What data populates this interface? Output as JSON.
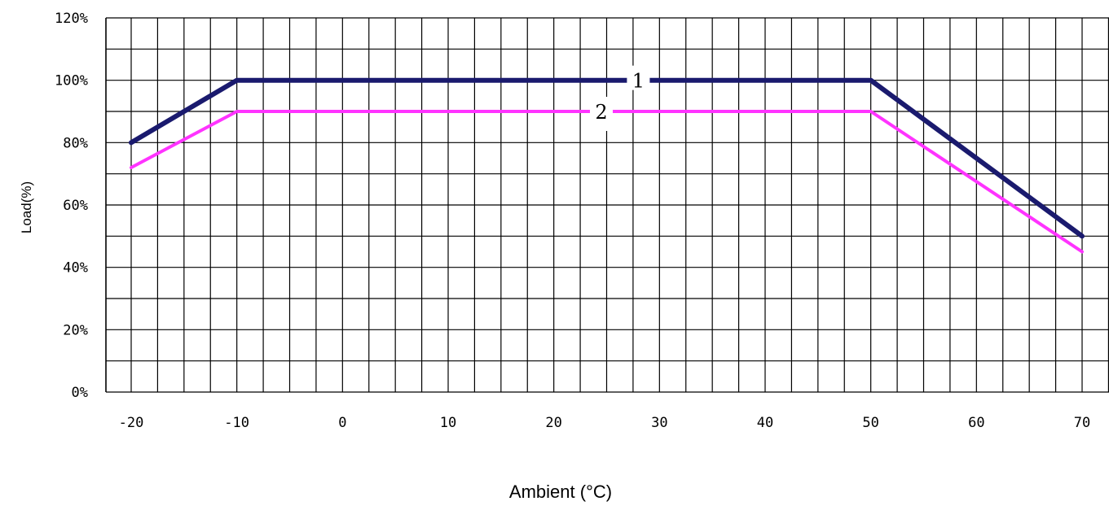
{
  "chart_data": {
    "type": "line",
    "xlabel": "Ambient (°C)",
    "ylabel": "Load(%)",
    "xlim": [
      -20,
      70
    ],
    "ylim": [
      0,
      120
    ],
    "grid": true,
    "x_ticks": [
      "-20",
      "-10",
      "0",
      "10",
      "20",
      "30",
      "40",
      "50",
      "60",
      "70"
    ],
    "y_ticks": [
      "0%",
      "20%",
      "40%",
      "60%",
      "80%",
      "100%",
      "120%"
    ],
    "series": [
      {
        "name": "1",
        "color": "#1a1a6e",
        "points": [
          [
            -20,
            80
          ],
          [
            -10,
            100
          ],
          [
            50,
            100
          ],
          [
            70,
            50
          ]
        ]
      },
      {
        "name": "2",
        "color": "#ff33ff",
        "points": [
          [
            -20,
            72
          ],
          [
            -10,
            90
          ],
          [
            50,
            90
          ],
          [
            70,
            45
          ]
        ]
      }
    ]
  }
}
